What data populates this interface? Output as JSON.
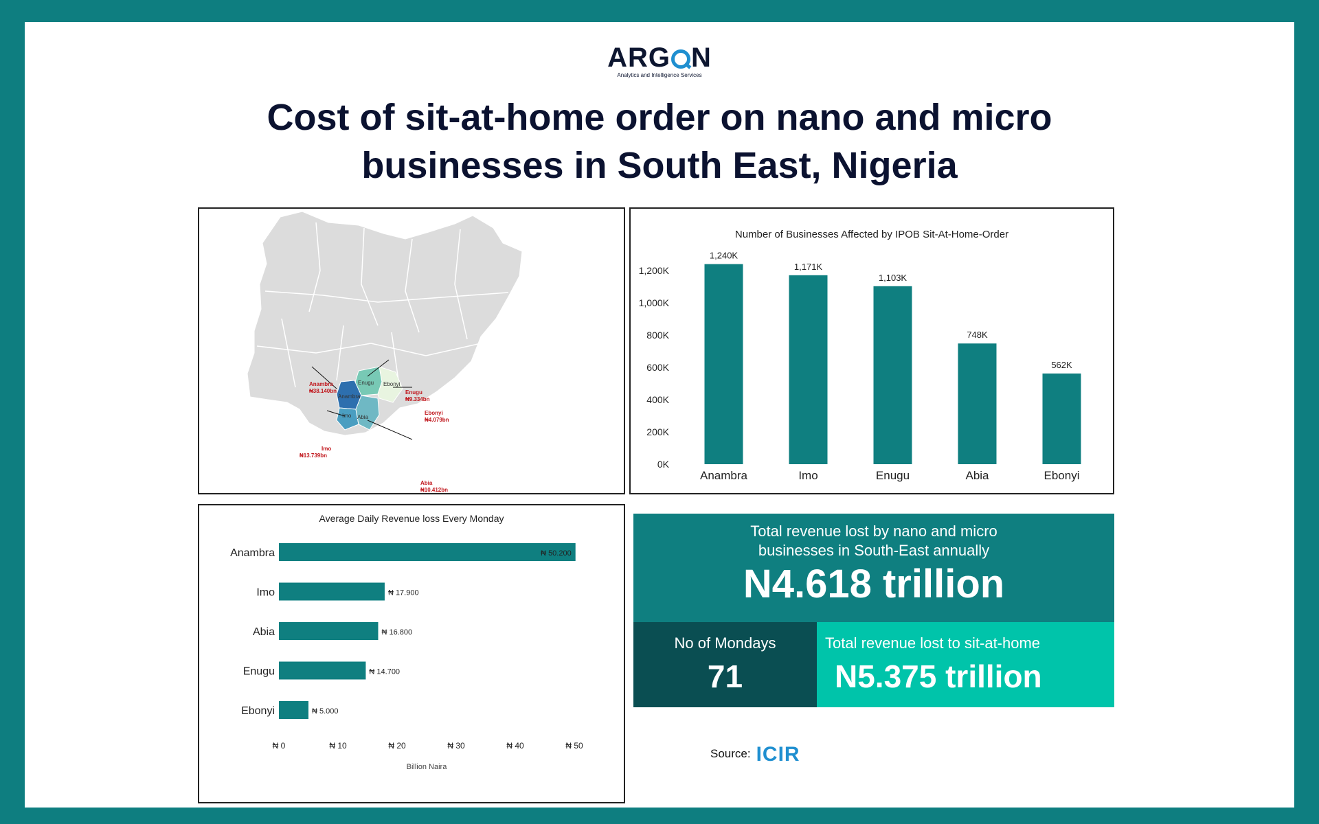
{
  "brand": {
    "name_a": "ARG",
    "name_b": "N",
    "tagline": "Analytics and Intelligence Services"
  },
  "title_line1": "Cost of sit-at-home order on nano and micro",
  "title_line2": "businesses in South East, Nigeria",
  "map": {
    "states": [
      {
        "name": "Anambra",
        "map_label": "Anambra",
        "value": "₦38.140bn"
      },
      {
        "name": "Enugu",
        "map_label": "Enugu",
        "value": "₦9.334bn"
      },
      {
        "name": "Ebonyi",
        "map_label": "Ebonyi",
        "value": "₦4.079bn"
      },
      {
        "name": "Imo",
        "map_label": "Imo",
        "value": "₦13.739bn"
      },
      {
        "name": "Abia",
        "map_label": "Abia",
        "value": "₦10.412bn"
      }
    ],
    "colors": {
      "Anambra": "#2d6fae",
      "Enugu": "#78c9b5",
      "Ebonyi": "#e8f4e0",
      "Imo": "#4a9ec1",
      "Abia": "#6fb8c4",
      "base": "#dcdcdc",
      "label": "#c0151b"
    }
  },
  "chart_data": [
    {
      "type": "bar",
      "title": "Number of Businesses Affected by IPOB Sit-At-Home-Order",
      "categories": [
        "Anambra",
        "Imo",
        "Enugu",
        "Abia",
        "Ebonyi"
      ],
      "values": [
        1240,
        1171,
        1103,
        748,
        562
      ],
      "value_labels": [
        "1,240K",
        "1,171K",
        "1,103K",
        "748K",
        "562K"
      ],
      "yticks": [
        "0K",
        "200K",
        "400K",
        "600K",
        "800K",
        "1,000K",
        "1,200K"
      ],
      "ylim": [
        0,
        1300
      ],
      "grid": false,
      "color": "#0f7f80"
    },
    {
      "type": "bar",
      "orientation": "horizontal",
      "title": "Average Daily Revenue loss Every Monday",
      "categories": [
        "Anambra",
        "Imo",
        "Abia",
        "Enugu",
        "Ebonyi"
      ],
      "values": [
        50.2,
        17.9,
        16.8,
        14.7,
        5.0
      ],
      "value_labels": [
        "₦ 50.200",
        "₦ 17.900",
        "₦ 16.800",
        "₦ 14.700",
        "₦ 5.000"
      ],
      "xticks": [
        "₦ 0",
        "₦ 10",
        "₦ 20",
        "₦ 30",
        "₦ 40",
        "₦ 50"
      ],
      "xlabel": "Billion Naira",
      "xlim": [
        0,
        50
      ],
      "grid": false,
      "color": "#0f7f80"
    }
  ],
  "stats": {
    "annual_label": "Total revenue lost by nano and micro\n businesses in South-East annually",
    "annual_value": "N4.618 trillion",
    "mondays_label": "No of Mondays",
    "mondays_value": "71",
    "total_label": "Total revenue lost to sit-at-home",
    "total_value": "N5.375 trillion"
  },
  "source": {
    "label": "Source:",
    "name": "ICIR"
  }
}
